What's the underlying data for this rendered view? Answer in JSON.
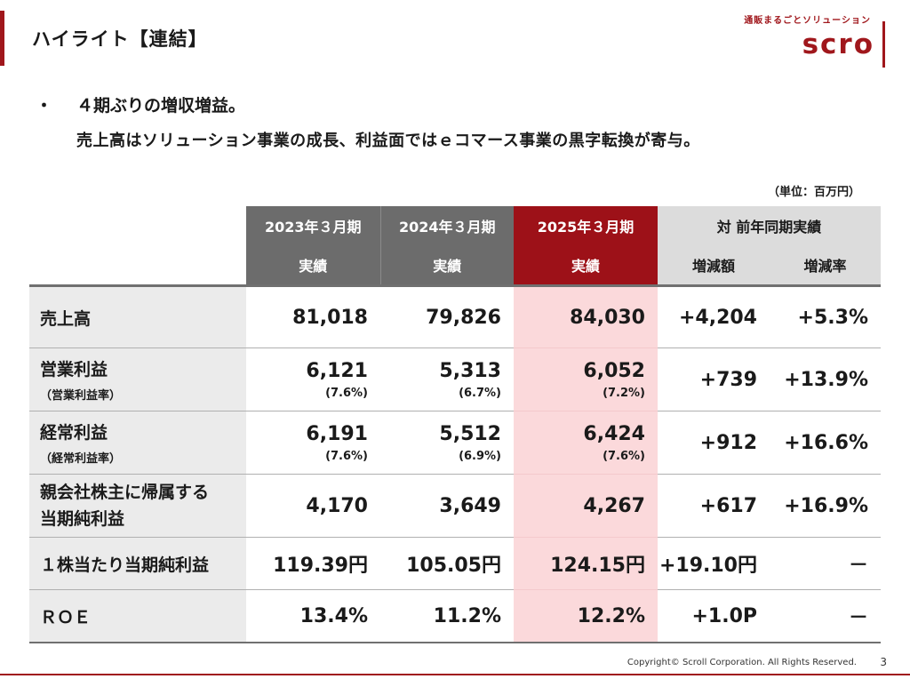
{
  "header": {
    "title": "ハイライト【連結】",
    "logo_tagline": "通販まるごとソリューション",
    "logo_word": "scro"
  },
  "summary": {
    "bullet": "・",
    "lead": "４期ぶりの増収増益。",
    "sub": "売上高はソリューション事業の成長、利益面ではｅコマース事業の黒字転換が寄与。"
  },
  "table": {
    "unit": "（単位：百万円）",
    "headers": {
      "fy2023": "2023年３月期",
      "fy2023_sub": "実績",
      "fy2024": "2024年３月期",
      "fy2024_sub": "実績",
      "fy2025": "2025年３月期",
      "fy2025_sub": "実績",
      "yoy": "対 前年同期実績",
      "yoy_amount": "増減額",
      "yoy_rate": "増減率"
    },
    "rows": [
      {
        "label": "売上高",
        "sublabel": "",
        "fy2023": "81,018",
        "fy2023_sub": "",
        "fy2024": "79,826",
        "fy2024_sub": "",
        "fy2025": "84,030",
        "fy2025_sub": "",
        "change": "+4,204",
        "rate": "+5.3%"
      },
      {
        "label": "営業利益",
        "sublabel": "（営業利益率）",
        "fy2023": "6,121",
        "fy2023_sub": "(7.6%)",
        "fy2024": "5,313",
        "fy2024_sub": "(6.7%)",
        "fy2025": "6,052",
        "fy2025_sub": "(7.2%)",
        "change": "+739",
        "rate": "+13.9%"
      },
      {
        "label": "経常利益",
        "sublabel": "（経常利益率）",
        "fy2023": "6,191",
        "fy2023_sub": "(7.6%)",
        "fy2024": "5,512",
        "fy2024_sub": "(6.9%)",
        "fy2025": "6,424",
        "fy2025_sub": "(7.6%)",
        "change": "+912",
        "rate": "+16.6%"
      },
      {
        "label": "親会社株主に帰属する",
        "sublabel": "当期純利益",
        "fy2023": "4,170",
        "fy2023_sub": "",
        "fy2024": "3,649",
        "fy2024_sub": "",
        "fy2025": "4,267",
        "fy2025_sub": "",
        "change": "+617",
        "rate": "+16.9%"
      },
      {
        "label": "１株当たり当期純利益",
        "sublabel": "",
        "fy2023": "119.39円",
        "fy2023_sub": "",
        "fy2024": "105.05円",
        "fy2024_sub": "",
        "fy2025": "124.15円",
        "fy2025_sub": "",
        "change": "+19.10円",
        "rate": "－"
      },
      {
        "label": "ＲＯＥ",
        "sublabel": "",
        "fy2023": "13.4%",
        "fy2023_sub": "",
        "fy2024": "11.2%",
        "fy2024_sub": "",
        "fy2025": "12.2%",
        "fy2025_sub": "",
        "change": "+1.0P",
        "rate": "－"
      }
    ]
  },
  "footer": {
    "copyright": "Copyright© Scroll Corporation. All Rights Reserved.",
    "page_number": "3"
  },
  "colors": {
    "brand_red": "#a0171c",
    "header_dark": "#6c6c6c",
    "header_red": "#9d1118",
    "highlight_pink": "#fbd9db",
    "label_gray": "#ebebeb"
  }
}
